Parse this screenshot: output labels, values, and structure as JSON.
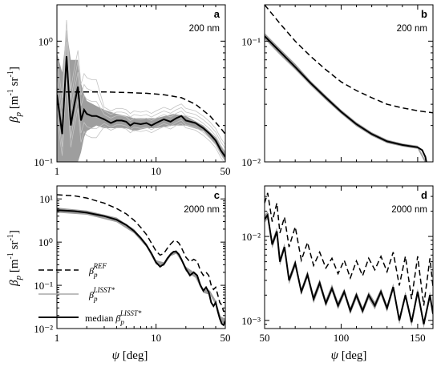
{
  "figure": {
    "ylabel": {
      "beta": "β",
      "p": "p",
      "open": " [m",
      "m1": "-1",
      "sr": " sr",
      "m1b": "-1",
      "close": "]"
    },
    "xlabel": {
      "psi": "ψ",
      "unit": " [deg]"
    }
  },
  "legend": {
    "ref": {
      "beta": "β",
      "sub": "p",
      "sup": "REF"
    },
    "lisst": {
      "beta": "β",
      "sub": "p",
      "sup": "LISST*"
    },
    "median": {
      "prefix": "median ",
      "beta": "β",
      "sub": "p",
      "sup": "LISST*"
    }
  },
  "colors": {
    "ref": "#000000",
    "lisst_band": "#9e9e9e",
    "lisst_lines": "#c4c4c4",
    "median": "#000000"
  },
  "chart_data": [
    {
      "panel": "a",
      "caption": "200 nm",
      "type": "line",
      "xscale": "log",
      "yscale": "log",
      "xlim": [
        1,
        50
      ],
      "ylim": [
        0.1,
        2
      ],
      "xticks": [
        {
          "v": 1,
          "label": "1"
        },
        {
          "v": 10,
          "label": "10"
        },
        {
          "v": 50,
          "label": "50"
        }
      ],
      "yticks": [
        {
          "v": 0.1,
          "label": "10⁻¹"
        },
        {
          "v": 1,
          "label": "10⁰"
        }
      ],
      "series": [
        {
          "role": "ref",
          "style": "dashed",
          "x": [
            1.0,
            1.5,
            2,
            3,
            5,
            8,
            12,
            18,
            25,
            35,
            45,
            50
          ],
          "y": [
            0.38,
            0.38,
            0.38,
            0.38,
            0.375,
            0.37,
            0.36,
            0.34,
            0.3,
            0.24,
            0.19,
            0.17
          ]
        },
        {
          "role": "median",
          "style": "solid",
          "x": [
            1.0,
            1.13,
            1.25,
            1.38,
            1.5,
            1.63,
            1.75,
            1.88,
            2.0,
            2.25,
            2.5,
            3.0,
            3.5,
            4.0,
            4.5,
            5.0,
            5.5,
            6.0,
            7.0,
            8.0,
            9.0,
            10.0,
            12.0,
            14.0,
            16.0,
            18.0,
            20.0,
            25.0,
            30.0,
            35.0,
            40.0,
            45.0,
            50.0
          ],
          "y": [
            0.36,
            0.17,
            0.75,
            0.2,
            0.3,
            0.42,
            0.22,
            0.27,
            0.25,
            0.24,
            0.24,
            0.225,
            0.21,
            0.22,
            0.22,
            0.215,
            0.2,
            0.21,
            0.205,
            0.21,
            0.2,
            0.21,
            0.225,
            0.215,
            0.23,
            0.24,
            0.22,
            0.21,
            0.19,
            0.17,
            0.15,
            0.125,
            0.11
          ]
        },
        {
          "role": "band",
          "x": [
            1.0,
            1.13,
            1.25,
            1.38,
            1.5,
            1.63,
            1.75,
            1.88,
            2.0,
            2.5,
            3.0,
            4.0,
            5.0,
            6.0,
            8.0,
            10.0,
            15.0,
            20.0,
            30.0,
            40.0,
            50.0
          ],
          "lo": [
            0.1,
            0.1,
            0.1,
            0.1,
            0.1,
            0.1,
            0.12,
            0.16,
            0.18,
            0.2,
            0.19,
            0.19,
            0.19,
            0.18,
            0.19,
            0.19,
            0.2,
            0.2,
            0.18,
            0.14,
            0.1
          ],
          "hi": [
            0.8,
            0.55,
            1.25,
            0.7,
            0.7,
            0.7,
            0.45,
            0.36,
            0.32,
            0.29,
            0.27,
            0.25,
            0.24,
            0.23,
            0.23,
            0.23,
            0.25,
            0.24,
            0.2,
            0.16,
            0.12
          ]
        }
      ]
    },
    {
      "panel": "b",
      "caption": "200 nm",
      "type": "line",
      "xscale": "linear",
      "yscale": "log",
      "xlim": [
        50,
        160
      ],
      "ylim": [
        0.01,
        0.2
      ],
      "xticks": [],
      "yticks": [
        {
          "v": 0.01,
          "label": "10⁻²"
        },
        {
          "v": 0.1,
          "label": "10⁻¹"
        }
      ],
      "series": [
        {
          "role": "ref",
          "style": "dashed",
          "x": [
            50,
            60,
            70,
            80,
            90,
            100,
            110,
            120,
            130,
            140,
            150,
            160
          ],
          "y": [
            0.2,
            0.14,
            0.1,
            0.075,
            0.058,
            0.046,
            0.039,
            0.034,
            0.03,
            0.028,
            0.0265,
            0.0255
          ]
        },
        {
          "role": "median",
          "style": "solid",
          "x": [
            50,
            55,
            60,
            70,
            80,
            90,
            100,
            110,
            120,
            130,
            140,
            150,
            153,
            155,
            156,
            157
          ],
          "y": [
            0.11,
            0.095,
            0.082,
            0.061,
            0.045,
            0.034,
            0.026,
            0.0205,
            0.017,
            0.0148,
            0.0138,
            0.0132,
            0.0125,
            0.011,
            0.0095,
            0.0075
          ]
        },
        {
          "role": "band",
          "x": [
            50,
            60,
            70,
            80,
            90,
            100,
            110,
            120,
            130,
            140,
            150,
            156
          ],
          "lo": [
            0.104,
            0.077,
            0.058,
            0.043,
            0.0325,
            0.025,
            0.0197,
            0.0164,
            0.0143,
            0.0134,
            0.0128,
            0.0092
          ],
          "hi": [
            0.117,
            0.087,
            0.065,
            0.047,
            0.0355,
            0.027,
            0.0213,
            0.0176,
            0.0153,
            0.0142,
            0.0136,
            0.0098
          ]
        }
      ]
    },
    {
      "panel": "c",
      "caption": "2000 nm",
      "type": "line",
      "xscale": "log",
      "yscale": "log",
      "xlim": [
        1,
        50
      ],
      "ylim": [
        0.01,
        20
      ],
      "xticks": [
        {
          "v": 1,
          "label": "1"
        },
        {
          "v": 10,
          "label": "10"
        },
        {
          "v": 50,
          "label": "50"
        }
      ],
      "yticks": [
        {
          "v": 0.01,
          "label": "10⁻²"
        },
        {
          "v": 0.1,
          "label": "10⁻¹"
        },
        {
          "v": 1,
          "label": "10⁰"
        },
        {
          "v": 10,
          "label": "10¹"
        }
      ],
      "series": [
        {
          "role": "ref",
          "style": "dashed",
          "x": [
            1,
            1.5,
            2,
            3,
            4,
            5,
            6,
            7,
            8,
            9,
            10,
            11,
            12,
            13,
            14,
            15,
            16,
            17,
            18,
            20,
            22,
            24,
            26,
            28,
            30,
            32,
            34,
            36,
            38,
            40,
            42,
            44,
            46,
            48,
            50
          ],
          "y": [
            12.5,
            11.8,
            10.5,
            8,
            6,
            4.5,
            3.2,
            2.2,
            1.5,
            0.95,
            0.62,
            0.5,
            0.55,
            0.72,
            0.9,
            1.05,
            1.08,
            0.95,
            0.75,
            0.45,
            0.35,
            0.4,
            0.36,
            0.22,
            0.17,
            0.2,
            0.17,
            0.1,
            0.08,
            0.09,
            0.06,
            0.04,
            0.035,
            0.025,
            0.025
          ]
        },
        {
          "role": "median",
          "style": "solid",
          "x": [
            1,
            1.5,
            2,
            3,
            4,
            5,
            6,
            7,
            8,
            9,
            10,
            11,
            12,
            13,
            14,
            15,
            16,
            17,
            18,
            20,
            22,
            24,
            26,
            28,
            30,
            32,
            34,
            36,
            38,
            40,
            42,
            44,
            46,
            48,
            50
          ],
          "y": [
            5.5,
            5.2,
            4.8,
            4.0,
            3.3,
            2.5,
            1.8,
            1.25,
            0.85,
            0.55,
            0.34,
            0.27,
            0.31,
            0.42,
            0.52,
            0.6,
            0.6,
            0.52,
            0.4,
            0.24,
            0.17,
            0.2,
            0.17,
            0.1,
            0.075,
            0.09,
            0.07,
            0.04,
            0.033,
            0.04,
            0.025,
            0.017,
            0.013,
            0.012,
            0.015
          ]
        },
        {
          "role": "band",
          "x": [
            1,
            2,
            4,
            6,
            8,
            10,
            12,
            14,
            16,
            18,
            20,
            25,
            30,
            35,
            40,
            45,
            50
          ],
          "lo": [
            4.8,
            4.3,
            2.9,
            1.6,
            0.77,
            0.3,
            0.28,
            0.47,
            0.54,
            0.36,
            0.21,
            0.15,
            0.067,
            0.06,
            0.035,
            0.014,
            0.013
          ],
          "hi": [
            6.3,
            5.4,
            3.7,
            2.0,
            0.94,
            0.38,
            0.34,
            0.57,
            0.66,
            0.44,
            0.27,
            0.19,
            0.083,
            0.075,
            0.045,
            0.019,
            0.017
          ]
        }
      ]
    },
    {
      "panel": "d",
      "caption": "2000 nm",
      "type": "line",
      "xscale": "linear",
      "yscale": "log",
      "xlim": [
        50,
        160
      ],
      "ylim": [
        0.0008,
        0.04
      ],
      "xticks": [
        {
          "v": 50,
          "label": "50"
        },
        {
          "v": 100,
          "label": "100"
        },
        {
          "v": 150,
          "label": "150"
        }
      ],
      "yticks": [
        {
          "v": 0.001,
          "label": "10⁻³"
        },
        {
          "v": 0.01,
          "label": "10⁻²"
        }
      ],
      "series": [
        {
          "role": "ref",
          "style": "dashed",
          "x": [
            50,
            52,
            55,
            58,
            60,
            63,
            66,
            70,
            74,
            78,
            82,
            86,
            90,
            94,
            98,
            102,
            106,
            110,
            114,
            118,
            122,
            126,
            130,
            134,
            138,
            142,
            146,
            150,
            154,
            158,
            160
          ],
          "y": [
            0.025,
            0.033,
            0.015,
            0.025,
            0.011,
            0.017,
            0.0075,
            0.013,
            0.0052,
            0.0085,
            0.0045,
            0.0065,
            0.0042,
            0.0055,
            0.0036,
            0.0052,
            0.0032,
            0.0051,
            0.0034,
            0.0055,
            0.004,
            0.0058,
            0.0038,
            0.0065,
            0.0026,
            0.0058,
            0.0018,
            0.0058,
            0.0015,
            0.0055,
            0.0025
          ]
        },
        {
          "role": "median",
          "style": "solid",
          "x": [
            50,
            52,
            55,
            58,
            60,
            63,
            66,
            70,
            74,
            78,
            82,
            86,
            90,
            94,
            98,
            102,
            106,
            110,
            114,
            118,
            122,
            126,
            130,
            134,
            138,
            142,
            146,
            150,
            154,
            158,
            160
          ],
          "y": [
            0.016,
            0.018,
            0.008,
            0.0115,
            0.005,
            0.0075,
            0.003,
            0.0048,
            0.0022,
            0.0035,
            0.0018,
            0.0028,
            0.0016,
            0.0024,
            0.0015,
            0.0022,
            0.0013,
            0.002,
            0.0013,
            0.002,
            0.0015,
            0.0022,
            0.0014,
            0.0025,
            0.001,
            0.002,
            0.00095,
            0.0022,
            0.0009,
            0.002,
            0.0012
          ]
        },
        {
          "role": "band",
          "x": [
            50,
            52,
            55,
            58,
            60,
            63,
            66,
            70,
            74,
            78,
            82,
            86,
            90,
            94,
            98,
            102,
            106,
            110,
            114,
            118,
            122,
            126,
            130,
            134,
            138,
            142,
            146,
            150,
            154,
            158,
            160
          ],
          "lo": [
            0.0145,
            0.0162,
            0.0072,
            0.0104,
            0.0045,
            0.0068,
            0.0027,
            0.0043,
            0.002,
            0.0032,
            0.0016,
            0.0025,
            0.00145,
            0.0022,
            0.00135,
            0.002,
            0.00118,
            0.0018,
            0.00118,
            0.0018,
            0.00135,
            0.002,
            0.00126,
            0.00225,
            0.0009,
            0.0018,
            0.00085,
            0.002,
            0.00081,
            0.0018,
            0.00108
          ],
          "hi": [
            0.0178,
            0.02,
            0.0089,
            0.0128,
            0.0056,
            0.0083,
            0.0033,
            0.0053,
            0.0024,
            0.0039,
            0.002,
            0.0031,
            0.00178,
            0.0027,
            0.00167,
            0.0024,
            0.00144,
            0.0022,
            0.00144,
            0.0022,
            0.00167,
            0.0024,
            0.00154,
            0.00275,
            0.0011,
            0.0022,
            0.00105,
            0.0024,
            0.001,
            0.0022,
            0.00132
          ]
        }
      ]
    }
  ]
}
